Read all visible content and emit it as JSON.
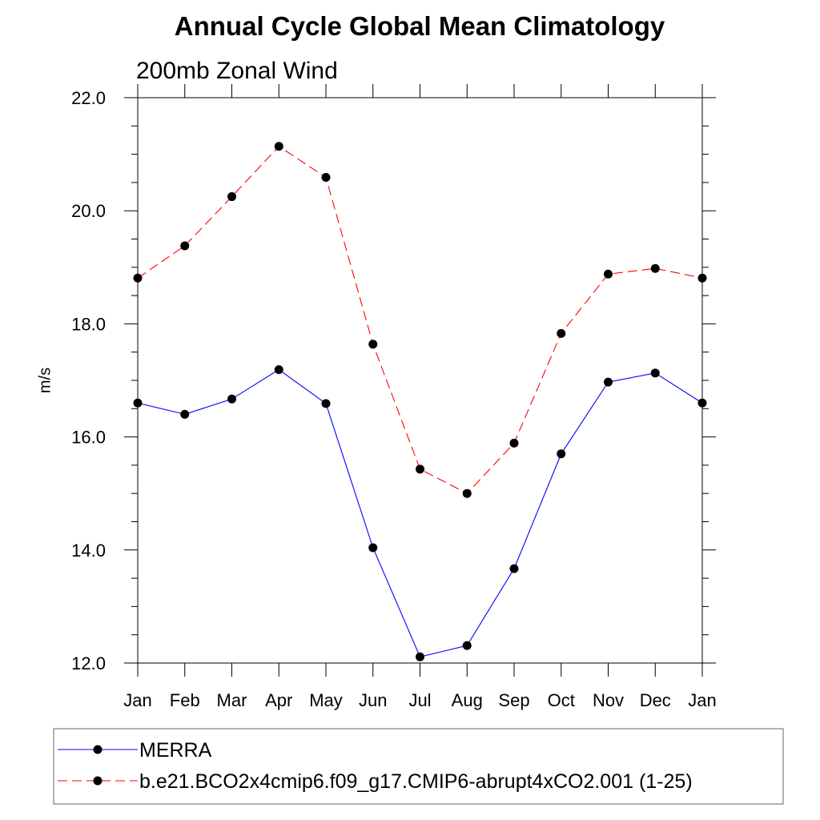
{
  "chart_data": {
    "type": "line",
    "title": "Annual Cycle Global Mean Climatology",
    "subtitle": "200mb Zonal Wind",
    "ylabel": "m/s",
    "xlabel": "",
    "categories": [
      "Jan",
      "Feb",
      "Mar",
      "Apr",
      "May",
      "Jun",
      "Jul",
      "Aug",
      "Sep",
      "Oct",
      "Nov",
      "Dec",
      "Jan"
    ],
    "ylim": [
      12.0,
      22.0
    ],
    "yticks": [
      "12.0",
      "14.0",
      "16.0",
      "18.0",
      "20.0",
      "22.0"
    ],
    "grid": false,
    "legend_position": "bottom",
    "series": [
      {
        "name": "MERRA",
        "color": "#0000ff",
        "dash": "solid",
        "marker": "filled-circle",
        "values": [
          16.6,
          16.4,
          16.67,
          17.19,
          16.59,
          14.04,
          12.11,
          12.31,
          13.67,
          15.7,
          16.97,
          17.13,
          16.6
        ]
      },
      {
        "name": "b.e21.BCO2x4cmip6.f09_g17.CMIP6-abrupt4xCO2.001 (1-25)",
        "color": "#ff0000",
        "dash": "dashed",
        "marker": "filled-circle",
        "values": [
          18.81,
          19.38,
          20.25,
          21.14,
          20.59,
          17.64,
          15.43,
          15.0,
          15.89,
          17.83,
          18.88,
          18.98,
          18.81
        ]
      }
    ]
  }
}
